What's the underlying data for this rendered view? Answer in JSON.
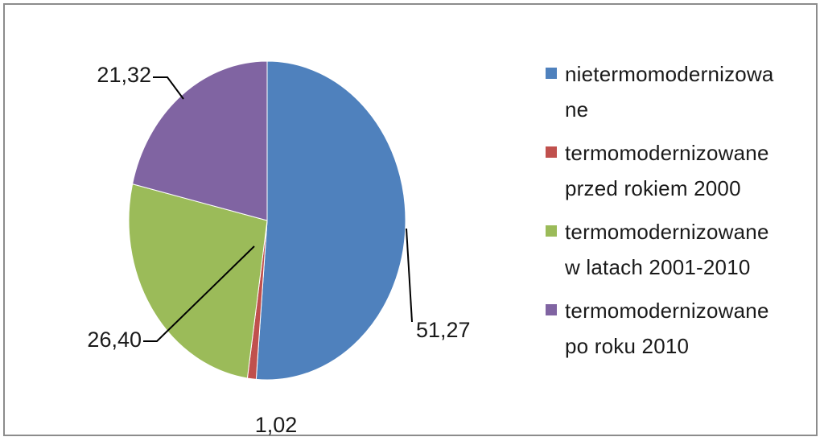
{
  "chart_data": {
    "type": "pie",
    "categories": [
      "nietermomodernizowane",
      "termomodernizowane przed rokiem 2000",
      "termomodernizowane w latach 2001-2010",
      "termomodernizowane po roku 2010"
    ],
    "values": [
      51.27,
      1.02,
      26.4,
      21.32
    ],
    "data_labels": [
      "51,27",
      "1,02",
      "26,40",
      "21,32"
    ],
    "colors": [
      "#4f81bd",
      "#c0504d",
      "#9bbb59",
      "#8064a2"
    ],
    "legend_lines": [
      [
        "nietermomodernizowa",
        "ne"
      ],
      [
        "termomodernizowane",
        "przed rokiem 2000"
      ],
      [
        "termomodernizowane",
        "w latach 2001-2010"
      ],
      [
        "termomodernizowane",
        "po roku 2010"
      ]
    ],
    "legend_position": "right",
    "title": ""
  }
}
